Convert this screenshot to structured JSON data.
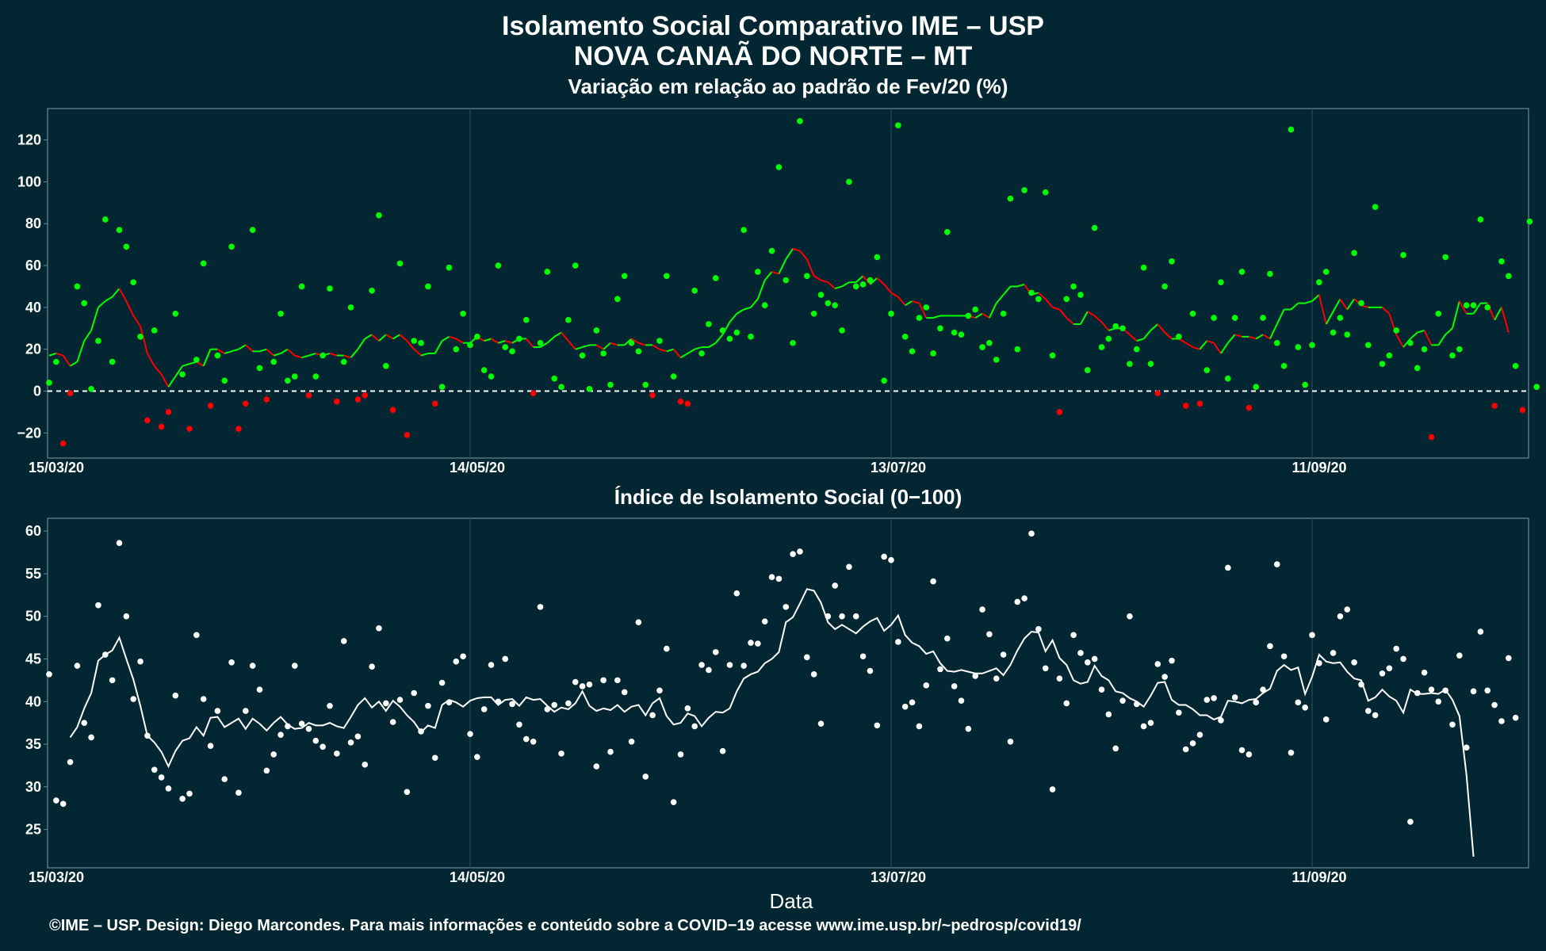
{
  "header": {
    "title_line1": "Isolamento Social Comparativo IME – USP",
    "title_line2": "NOVA CANAÃ DO NORTE – MT"
  },
  "footer": {
    "credit": "©IME – USP. Design: Diego Marcondes. Para mais informações e conteúdo sobre a COVID−19 acesse www.ime.usp.br/~pedrosp/covid19/"
  },
  "colors": {
    "background": "#022733",
    "positive": "#00ff00",
    "negative": "#ff0000",
    "index": "#ffffff"
  },
  "chart_data": [
    {
      "type": "scatter",
      "title": "Variação em relação ao padrão de Fev/20 (%)",
      "xlabel": "",
      "ylabel": "",
      "x_start": "15/03/20",
      "x_tick_labels": [
        "15/03/20",
        "14/05/20",
        "13/07/20",
        "11/09/20"
      ],
      "x_tick_days": [
        0,
        60,
        120,
        180
      ],
      "y_ticks": [
        -20,
        0,
        20,
        40,
        60,
        80,
        100,
        120
      ],
      "ylim": [
        -32,
        135
      ],
      "reference_line": 0,
      "series": [
        {
          "values": [
            4,
            14,
            -25,
            -1,
            50,
            42,
            1,
            24,
            82,
            14,
            77,
            69,
            52,
            26,
            -14,
            29,
            -17,
            -10,
            37,
            8,
            -18,
            15,
            61,
            -7,
            17,
            5,
            69,
            -18,
            -6,
            77,
            11,
            -4,
            14,
            37,
            5,
            7,
            50,
            -2,
            7,
            17,
            49,
            -5,
            14,
            40,
            -4,
            -2,
            48,
            84,
            12,
            -9,
            61,
            -21,
            24,
            23,
            50,
            -6,
            2,
            59,
            20,
            37,
            22,
            26,
            10,
            7,
            60,
            21,
            19,
            25,
            34,
            -1,
            23,
            57,
            6,
            2,
            34,
            60,
            17,
            1,
            29,
            18,
            3,
            44,
            55,
            23,
            19,
            3,
            -2,
            24,
            55,
            7,
            -5,
            -6,
            48,
            18,
            32,
            54,
            29,
            25,
            28,
            77,
            26,
            57,
            41,
            67,
            107,
            53,
            23,
            129,
            55,
            37,
            46,
            42,
            41,
            29,
            100,
            50,
            51,
            53,
            64,
            5,
            37,
            127,
            26,
            19,
            35,
            40,
            18,
            30,
            76,
            28,
            27,
            36,
            39,
            21,
            23,
            15,
            37,
            92,
            20,
            96,
            47,
            44,
            95,
            17,
            -10,
            44,
            50,
            46,
            10,
            78,
            21,
            25,
            31,
            30,
            13,
            20,
            59,
            13,
            -1,
            50,
            62,
            26,
            -7,
            37,
            -6,
            10,
            35,
            52,
            6,
            35,
            57,
            -8,
            2,
            35,
            56,
            23,
            12,
            125,
            21,
            3,
            22,
            52,
            57,
            28,
            35,
            27,
            66,
            42,
            22,
            88,
            13,
            17,
            29,
            65,
            23,
            11,
            20,
            -22,
            37,
            64,
            17,
            20,
            41,
            41,
            82,
            40,
            -7,
            62,
            55,
            12,
            -9,
            81,
            2
          ]
        },
        {
          "values": [
            17,
            18,
            17,
            12,
            14,
            24,
            29,
            40,
            43,
            45,
            49,
            43,
            36,
            31,
            18,
            12,
            8,
            2,
            7,
            12,
            13,
            14,
            12,
            20,
            20,
            18,
            19,
            20,
            22,
            19,
            19,
            20,
            17,
            18,
            20,
            17,
            16,
            17,
            18,
            17,
            18,
            17,
            17,
            16,
            20,
            25,
            27,
            24,
            27,
            25,
            27,
            24,
            20,
            17,
            18,
            18,
            24,
            26,
            25,
            23,
            23,
            26,
            24,
            25,
            23,
            24,
            23,
            25,
            25,
            21,
            21,
            23,
            26,
            28,
            24,
            20,
            21,
            22,
            22,
            20,
            23,
            22,
            22,
            25,
            23,
            22,
            22,
            20,
            19,
            20,
            16,
            18,
            20,
            21,
            21,
            23,
            27,
            33,
            37,
            39,
            40,
            44,
            53,
            57,
            56,
            63,
            68,
            67,
            63,
            55,
            53,
            52,
            49,
            50,
            52,
            52,
            55,
            51,
            54,
            51,
            47,
            45,
            41,
            43,
            42,
            35,
            35,
            36,
            36,
            36,
            36,
            36,
            35,
            37,
            35,
            42,
            46,
            50,
            50,
            51,
            46,
            47,
            44,
            40,
            39,
            35,
            32,
            32,
            38,
            36,
            33,
            29,
            30,
            30,
            27,
            24,
            25,
            29,
            32,
            28,
            25,
            25,
            23,
            21,
            20,
            24,
            23,
            18,
            23,
            27,
            26,
            26,
            25,
            27,
            25,
            32,
            39,
            39,
            42,
            42,
            43,
            46,
            32,
            38,
            44,
            39,
            44,
            41,
            40,
            40,
            40,
            37,
            27,
            21,
            25,
            28,
            29,
            22,
            22,
            27,
            30,
            43,
            37,
            37,
            42,
            42,
            34,
            40,
            28
          ]
        }
      ]
    },
    {
      "type": "scatter",
      "title": "Índice de Isolamento Social (0−100)",
      "xlabel": "Data",
      "ylabel": "",
      "x_start": "15/03/20",
      "x_tick_labels": [
        "15/03/20",
        "14/05/20",
        "13/07/20",
        "11/09/20"
      ],
      "x_tick_days": [
        0,
        60,
        120,
        180
      ],
      "y_ticks": [
        25,
        30,
        35,
        40,
        45,
        50,
        55,
        60
      ],
      "ylim": [
        20.5,
        61.5
      ],
      "series": [
        {
          "values": [
            43.2,
            28.4,
            28,
            32.9,
            44.2,
            37.5,
            35.8,
            51.3,
            45.5,
            42.5,
            58.6,
            50,
            40.3,
            44.7,
            36,
            32,
            31.1,
            29.8,
            40.7,
            28.6,
            29.2,
            47.8,
            40.3,
            34.8,
            38.9,
            30.9,
            44.6,
            29.3,
            38.9,
            44.2,
            41.4,
            31.9,
            33.8,
            36.1,
            37.1,
            44.2,
            37.4,
            36.8,
            35.4,
            34.7,
            39.5,
            33.9,
            47.1,
            35.2,
            35.9,
            32.6,
            44.1,
            48.6,
            39.8,
            37.6,
            40.2,
            29.4,
            41,
            36.5,
            39.5,
            33.4,
            42.2,
            39.9,
            44.7,
            45.3,
            36.2,
            33.5,
            39.1,
            44.3,
            40,
            45,
            39.7,
            37.3,
            35.6,
            35.3,
            51.1,
            39.1,
            39.6,
            33.9,
            39.8,
            42.3,
            41.8,
            42,
            32.4,
            42.5,
            34.1,
            42.5,
            41.1,
            35.3,
            49.3,
            31.2,
            38.4,
            41.3,
            46.2,
            28.2,
            33.8,
            39.2,
            37.1,
            44.3,
            43.7,
            45.8,
            34.2,
            44.3,
            52.7,
            44.2,
            46.9,
            46.8,
            49.4,
            54.6,
            54.4,
            51.1,
            57.3,
            57.6,
            45.2,
            43.2,
            37.4,
            50,
            53.6,
            50,
            55.8,
            50,
            45.3,
            43.6,
            37.2,
            57,
            56.6,
            47,
            39.4,
            39.9,
            37.1,
            41.9,
            54.1,
            43.8,
            47.4,
            41.8,
            40.1,
            36.8,
            43,
            50.8,
            47.9,
            42.7,
            45.5,
            35.3,
            51.7,
            52.1,
            59.7,
            48.5,
            43.9,
            29.7,
            42.7,
            39.8,
            47.8,
            45.7,
            44.6,
            45,
            41.4,
            38.5,
            34.5,
            40.1,
            50,
            39.7,
            37.1,
            37.5,
            44.4,
            42.9,
            44.8,
            38.7,
            34.4,
            35.1,
            36.1,
            40.2,
            40.4,
            37.8,
            55.7,
            40.5,
            34.3,
            33.8,
            39.9,
            41.4,
            46.5,
            56.1,
            45.3,
            34,
            39.9,
            39.3,
            47.8,
            44.5,
            37.9,
            45.7,
            50,
            50.8,
            44.6,
            42,
            38.9,
            38.4,
            43.3,
            43.9,
            46.2,
            45,
            25.9,
            41,
            43.4,
            41.4,
            40,
            41.3,
            37.3,
            45.4,
            34.6,
            41.2,
            48.2,
            41.3,
            39.6,
            37.7,
            45.1,
            38.1
          ]
        },
        {
          "values": [
            35.8,
            37,
            39.2,
            41,
            44.8,
            45.5,
            46,
            47.5,
            45,
            42.6,
            39.5,
            36,
            35.2,
            34.1,
            32.4,
            34.2,
            35.4,
            35.7,
            37,
            36,
            38.1,
            38.2,
            37,
            37.5,
            38,
            36.8,
            38,
            37.4,
            36.6,
            37.5,
            38.2,
            37.3,
            36.8,
            36.9,
            37.5,
            37.2,
            37.2,
            37.5,
            37.1,
            36.9,
            38.2,
            39.6,
            40.4,
            39.3,
            40,
            38.9,
            40.1,
            39.4,
            38.4,
            37.6,
            36.4,
            37.2,
            36.9,
            39.6,
            40.2,
            39.9,
            39.4,
            40.1,
            40.4,
            40.5,
            40.5,
            39.6,
            40.2,
            40.3,
            39.5,
            40.5,
            40.2,
            40.3,
            39.5,
            38.8,
            39.3,
            39.1,
            39.8,
            41.2,
            39.5,
            38.9,
            39.2,
            39,
            39.6,
            38.8,
            39.4,
            39.6,
            38.4,
            39.8,
            40.4,
            38.3,
            37.3,
            37.5,
            38.6,
            38.3,
            37.1,
            38.1,
            38.8,
            38.7,
            39.2,
            41.2,
            42.7,
            43.2,
            43.5,
            44.5,
            45,
            45.8,
            49.3,
            49.9,
            51.5,
            53.2,
            53,
            51.6,
            49.3,
            48.5,
            49,
            48.5,
            48,
            48.8,
            49.4,
            49.8,
            48.3,
            49,
            50.1,
            47.8,
            46.9,
            46.5,
            45.6,
            45.9,
            44.5,
            43.6,
            43.5,
            43.7,
            43.5,
            43.3,
            43.3,
            43.6,
            43.9,
            43.1,
            44.3,
            46,
            47.4,
            48.2,
            48.1,
            45.9,
            47.2,
            45.1,
            44.3,
            42.5,
            42.1,
            42.3,
            44.2,
            43,
            42.5,
            41.2,
            41,
            40.4,
            40,
            39.4,
            40.7,
            42.2,
            42.3,
            40.2,
            39.6,
            39.6,
            39.1,
            38.4,
            38.4,
            37.9,
            38.2,
            40.1,
            40,
            39.8,
            40.2,
            40.3,
            41,
            41.5,
            43.6,
            44.3,
            43.7,
            44,
            40.9,
            42.9,
            45.5,
            44.7,
            44.5,
            44.6,
            43.5,
            42.7,
            42.5,
            40.1,
            40.5,
            41.4,
            40.6,
            40.1,
            38.7,
            41.4,
            40.9,
            40.9,
            41,
            40.9,
            41.4,
            40.2,
            38.3,
            31.4,
            21.8
          ]
        }
      ]
    }
  ]
}
